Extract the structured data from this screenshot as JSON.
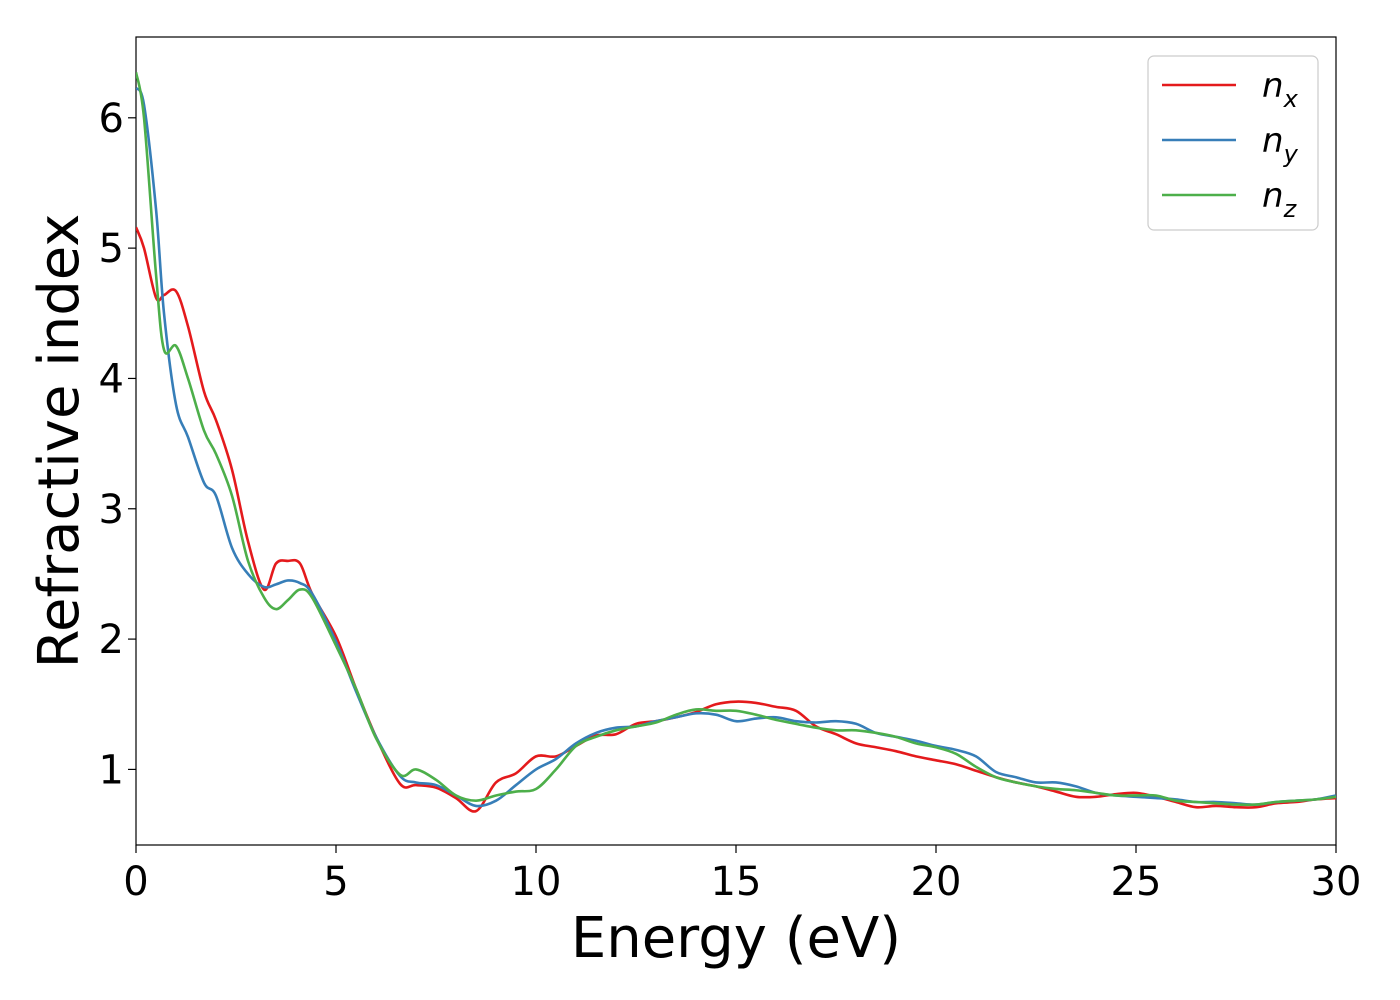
{
  "chart_data": {
    "type": "line",
    "title": "",
    "xlabel": "Energy (eV)",
    "ylabel": "Refractive index",
    "xlim": [
      0,
      30
    ],
    "ylim": [
      0.42,
      6.62
    ],
    "xticks": [
      "0",
      "5",
      "10",
      "15",
      "20",
      "25",
      "30"
    ],
    "yticks": [
      "1",
      "2",
      "3",
      "4",
      "5",
      "6"
    ],
    "grid": false,
    "legend_position": "top-right",
    "series": [
      {
        "name": "n",
        "subscript": "x",
        "color": "#e41a1c",
        "x": [
          0,
          0.2,
          0.5,
          0.7,
          1.0,
          1.3,
          1.7,
          2.0,
          2.4,
          2.8,
          3.2,
          3.5,
          3.8,
          4.1,
          4.4,
          5.0,
          5.5,
          6.0,
          6.6,
          7.0,
          7.5,
          8.0,
          8.5,
          9.0,
          9.5,
          10.0,
          10.5,
          11.0,
          11.5,
          12.0,
          12.5,
          13.0,
          13.5,
          14.0,
          14.5,
          15.0,
          15.5,
          16.0,
          16.5,
          17.0,
          17.5,
          18.0,
          18.5,
          19.0,
          19.5,
          20.0,
          20.5,
          21.0,
          21.5,
          22.0,
          22.5,
          23.0,
          23.5,
          24.0,
          24.5,
          25.0,
          25.5,
          26.0,
          26.5,
          27.0,
          27.5,
          28.0,
          28.5,
          29.0,
          29.5,
          30.0
        ],
        "y": [
          5.16,
          5.0,
          4.62,
          4.64,
          4.67,
          4.4,
          3.9,
          3.68,
          3.3,
          2.75,
          2.38,
          2.58,
          2.6,
          2.58,
          2.35,
          2.02,
          1.62,
          1.25,
          0.89,
          0.88,
          0.86,
          0.78,
          0.68,
          0.9,
          0.97,
          1.1,
          1.1,
          1.18,
          1.26,
          1.27,
          1.35,
          1.37,
          1.4,
          1.44,
          1.5,
          1.52,
          1.51,
          1.48,
          1.45,
          1.33,
          1.27,
          1.2,
          1.17,
          1.14,
          1.1,
          1.07,
          1.04,
          0.99,
          0.94,
          0.9,
          0.87,
          0.83,
          0.79,
          0.79,
          0.81,
          0.82,
          0.79,
          0.75,
          0.71,
          0.72,
          0.71,
          0.71,
          0.74,
          0.75,
          0.77,
          0.78
        ]
      },
      {
        "name": "n",
        "subscript": "y",
        "color": "#377eb8",
        "x": [
          0,
          0.2,
          0.5,
          0.7,
          1.0,
          1.3,
          1.7,
          2.0,
          2.4,
          2.8,
          3.2,
          3.5,
          3.8,
          4.1,
          4.4,
          5.0,
          5.5,
          6.0,
          6.6,
          7.0,
          7.5,
          8.0,
          8.5,
          9.0,
          9.5,
          10.0,
          10.5,
          11.0,
          11.5,
          12.0,
          12.5,
          13.0,
          13.5,
          14.0,
          14.5,
          15.0,
          15.5,
          16.0,
          16.5,
          17.0,
          17.5,
          18.0,
          18.5,
          19.0,
          19.5,
          20.0,
          20.5,
          21.0,
          21.5,
          22.0,
          22.5,
          23.0,
          23.5,
          24.0,
          24.5,
          25.0,
          25.5,
          26.0,
          26.5,
          27.0,
          27.5,
          28.0,
          28.5,
          29.0,
          29.5,
          30.0
        ],
        "y": [
          6.23,
          6.1,
          5.3,
          4.5,
          3.8,
          3.55,
          3.2,
          3.1,
          2.7,
          2.5,
          2.4,
          2.42,
          2.45,
          2.43,
          2.35,
          1.98,
          1.6,
          1.25,
          0.95,
          0.9,
          0.88,
          0.8,
          0.72,
          0.76,
          0.88,
          1.0,
          1.08,
          1.2,
          1.28,
          1.32,
          1.33,
          1.37,
          1.4,
          1.43,
          1.42,
          1.37,
          1.39,
          1.4,
          1.37,
          1.36,
          1.37,
          1.35,
          1.28,
          1.25,
          1.22,
          1.18,
          1.15,
          1.1,
          0.98,
          0.94,
          0.9,
          0.9,
          0.87,
          0.82,
          0.8,
          0.79,
          0.78,
          0.77,
          0.75,
          0.75,
          0.74,
          0.73,
          0.75,
          0.76,
          0.77,
          0.8
        ]
      },
      {
        "name": "n",
        "subscript": "z",
        "color": "#4daf4a",
        "x": [
          0,
          0.2,
          0.5,
          0.7,
          1.0,
          1.3,
          1.7,
          2.0,
          2.4,
          2.8,
          3.2,
          3.5,
          3.8,
          4.1,
          4.4,
          5.0,
          5.5,
          6.0,
          6.6,
          7.0,
          7.5,
          8.0,
          8.5,
          9.0,
          9.5,
          10.0,
          10.5,
          11.0,
          11.5,
          12.0,
          12.5,
          13.0,
          13.5,
          14.0,
          14.5,
          15.0,
          15.5,
          16.0,
          16.5,
          17.0,
          17.5,
          18.0,
          18.5,
          19.0,
          19.5,
          20.0,
          20.5,
          21.0,
          21.5,
          22.0,
          22.5,
          23.0,
          23.5,
          24.0,
          24.5,
          25.0,
          25.5,
          26.0,
          26.5,
          27.0,
          27.5,
          28.0,
          28.5,
          29.0,
          29.5,
          30.0
        ],
        "y": [
          6.35,
          6.0,
          4.8,
          4.22,
          4.25,
          4.0,
          3.6,
          3.42,
          3.1,
          2.6,
          2.32,
          2.23,
          2.3,
          2.38,
          2.32,
          1.95,
          1.62,
          1.24,
          0.96,
          1.0,
          0.92,
          0.8,
          0.76,
          0.8,
          0.83,
          0.85,
          1.0,
          1.18,
          1.25,
          1.3,
          1.33,
          1.36,
          1.42,
          1.46,
          1.45,
          1.45,
          1.42,
          1.38,
          1.35,
          1.32,
          1.3,
          1.3,
          1.28,
          1.25,
          1.2,
          1.17,
          1.12,
          1.02,
          0.94,
          0.9,
          0.87,
          0.85,
          0.84,
          0.82,
          0.8,
          0.8,
          0.8,
          0.76,
          0.75,
          0.74,
          0.73,
          0.73,
          0.75,
          0.76,
          0.77,
          0.79
        ]
      }
    ]
  }
}
